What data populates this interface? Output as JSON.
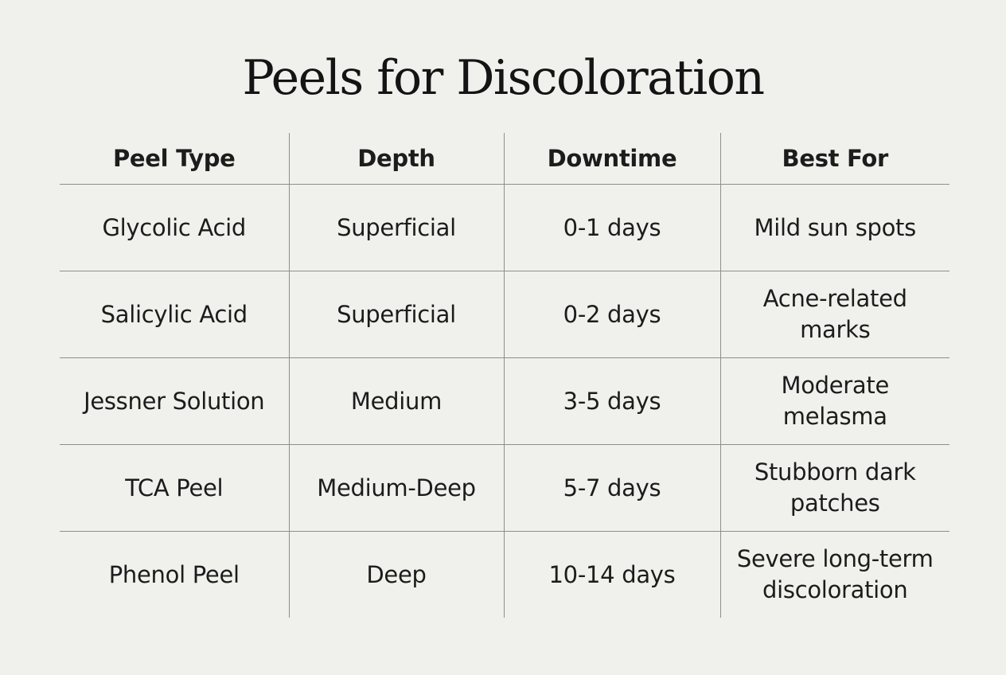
{
  "title": "Peels for Discoloration",
  "table": {
    "headers": [
      "Peel Type",
      "Depth",
      "Downtime",
      "Best For"
    ],
    "rows": [
      [
        "Glycolic Acid",
        "Superficial",
        "0-1 days",
        "Mild sun spots"
      ],
      [
        "Salicylic Acid",
        "Superficial",
        "0-2 days",
        "Acne-related marks"
      ],
      [
        "Jessner Solution",
        "Medium",
        "3-5 days",
        "Moderate melasma"
      ],
      [
        "TCA Peel",
        "Medium-Deep",
        "5-7 days",
        "Stubborn dark patches"
      ],
      [
        "Phenol Peel",
        "Deep",
        "10-14 days",
        "Severe long-term discoloration"
      ]
    ]
  }
}
